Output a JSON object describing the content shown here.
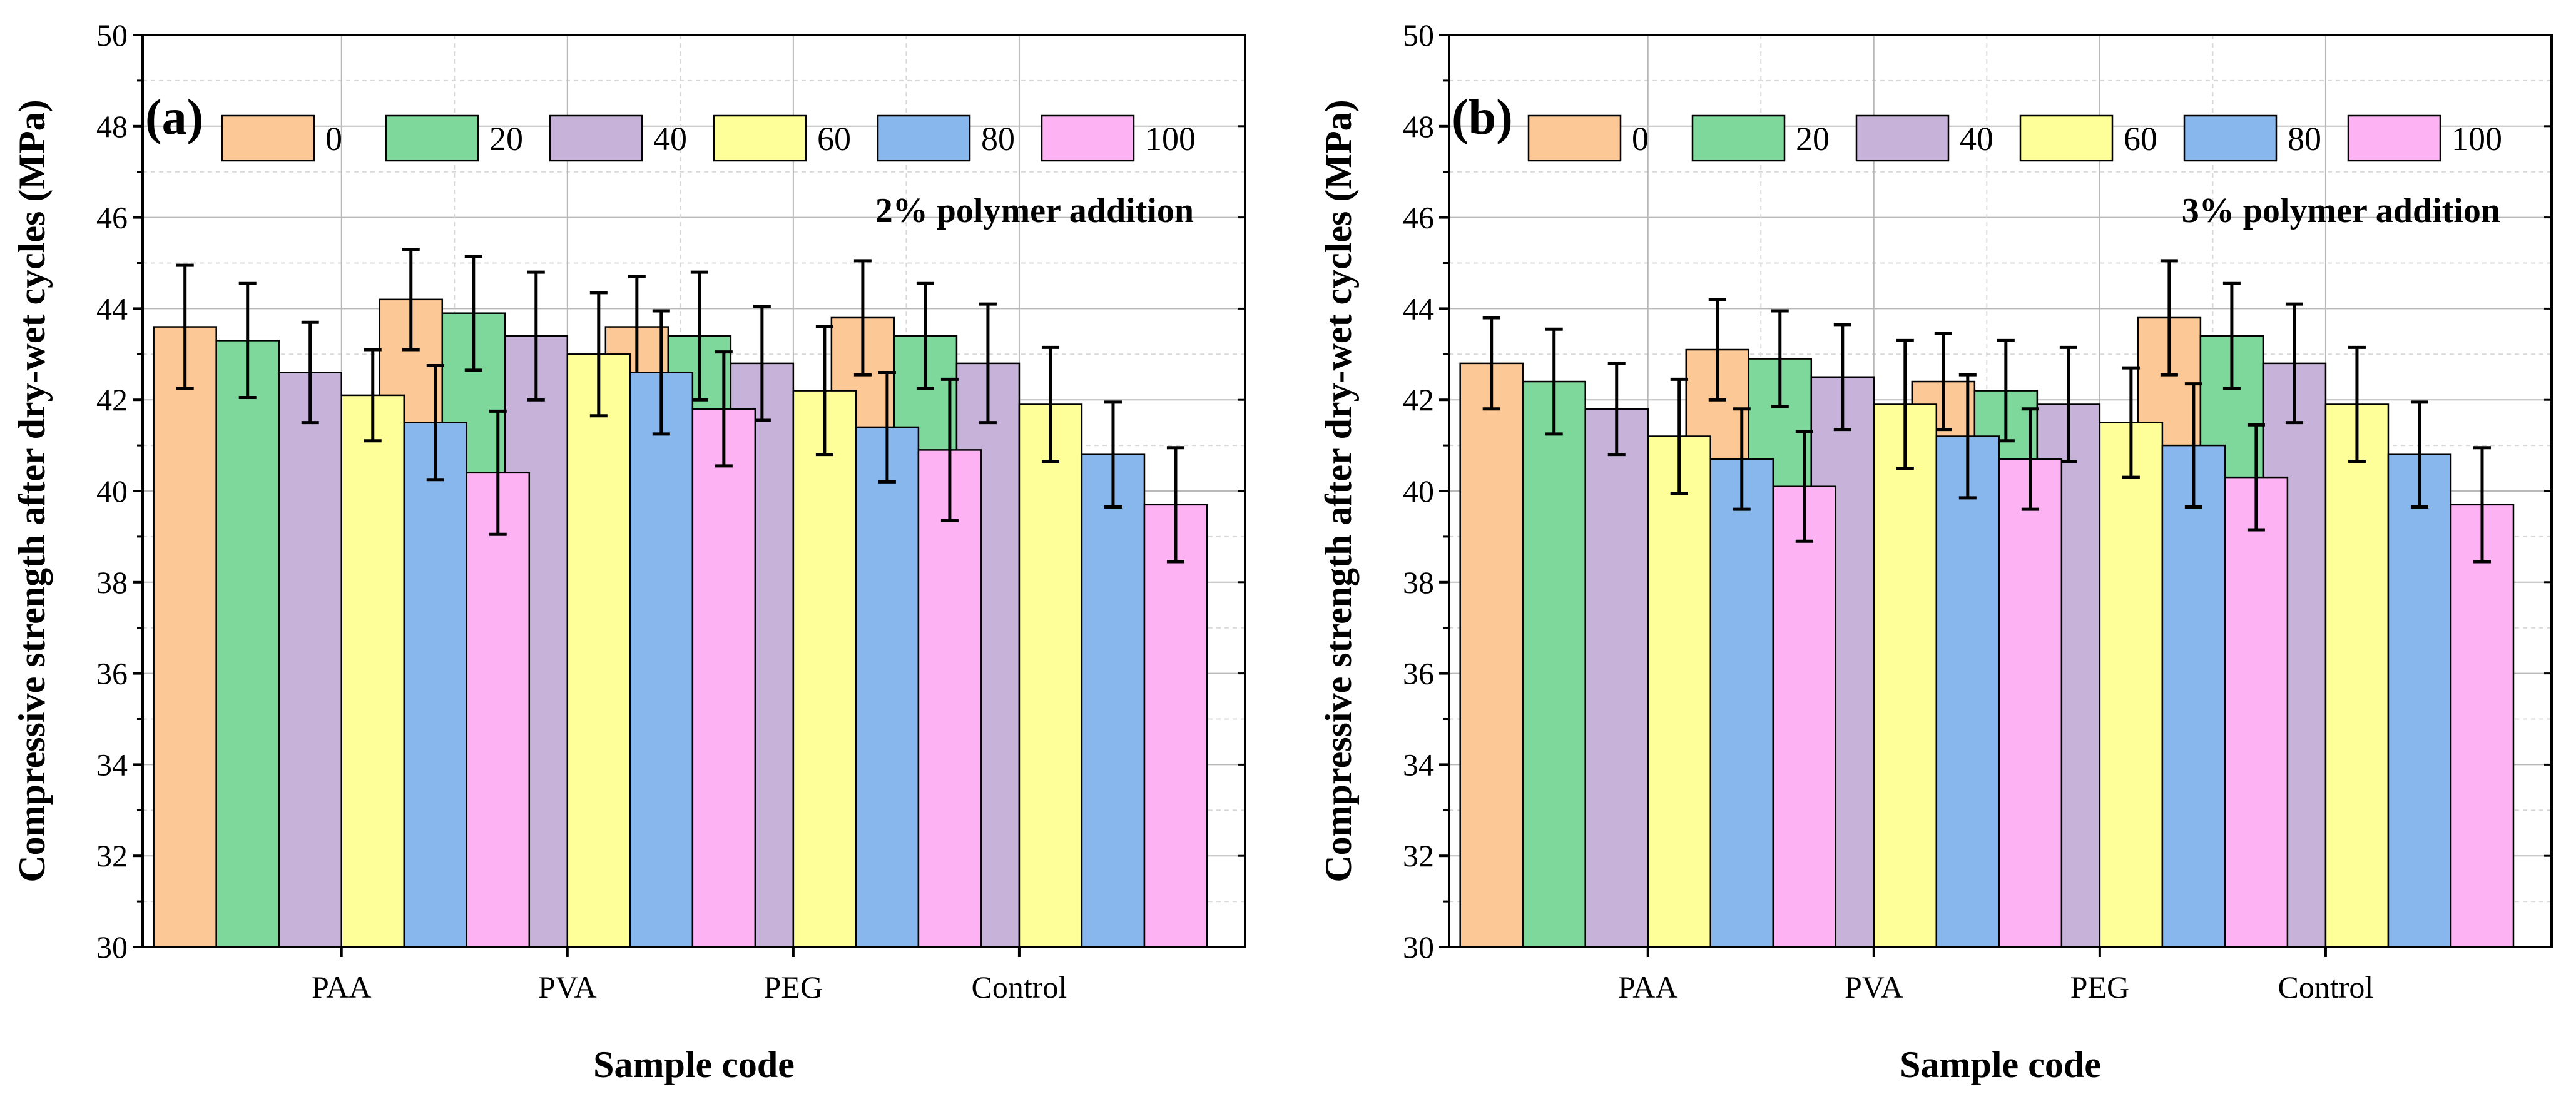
{
  "chart_data": [
    {
      "type": "bar",
      "panel_label": "(a)",
      "annotation": "2% polymer addition",
      "title": "",
      "xlabel": "Sample code",
      "ylabel": "Compressive strength after dry-wet cycles (MPa)",
      "categories": [
        "PAA",
        "PVA",
        "PEG",
        "Control"
      ],
      "ylim": [
        30,
        50
      ],
      "yticks": [
        "30",
        "32",
        "34",
        "36",
        "38",
        "40",
        "42",
        "44",
        "46",
        "48",
        "50"
      ],
      "grid": true,
      "legend_placement": "top",
      "series": [
        {
          "name": "0",
          "color": "#fcc896",
          "values": [
            43.6,
            44.2,
            43.6,
            43.8
          ],
          "errors": [
            1.35,
            1.1,
            1.1,
            1.25
          ]
        },
        {
          "name": "20",
          "color": "#7ed89b",
          "values": [
            43.3,
            43.9,
            43.4,
            43.4
          ],
          "errors": [
            1.25,
            1.25,
            1.4,
            1.15
          ]
        },
        {
          "name": "40",
          "color": "#c7b3d9",
          "values": [
            42.6,
            43.4,
            42.8,
            42.8
          ],
          "errors": [
            1.1,
            1.4,
            1.25,
            1.3
          ]
        },
        {
          "name": "60",
          "color": "#ffff99",
          "values": [
            42.1,
            43.0,
            42.2,
            41.9
          ],
          "errors": [
            1.0,
            1.35,
            1.4,
            1.25
          ]
        },
        {
          "name": "80",
          "color": "#88b7ee",
          "values": [
            41.5,
            42.6,
            41.4,
            40.8
          ],
          "errors": [
            1.25,
            1.35,
            1.2,
            1.15
          ]
        },
        {
          "name": "100",
          "color": "#fdb2f3",
          "values": [
            40.4,
            41.8,
            40.9,
            39.7
          ],
          "errors": [
            1.35,
            1.25,
            1.55,
            1.25
          ]
        }
      ]
    },
    {
      "type": "bar",
      "panel_label": "(b)",
      "annotation": "3% polymer addition",
      "title": "",
      "xlabel": "Sample code",
      "ylabel": "Compressive strength after dry-wet cycles (MPa)",
      "categories": [
        "PAA",
        "PVA",
        "PEG",
        "Control"
      ],
      "ylim": [
        30,
        50
      ],
      "yticks": [
        "30",
        "32",
        "34",
        "36",
        "38",
        "40",
        "42",
        "44",
        "46",
        "48",
        "50"
      ],
      "grid": true,
      "legend_placement": "top",
      "series": [
        {
          "name": "0",
          "color": "#fcc896",
          "values": [
            42.8,
            43.1,
            42.4,
            43.8
          ],
          "errors": [
            1.0,
            1.1,
            1.05,
            1.25
          ]
        },
        {
          "name": "20",
          "color": "#7ed89b",
          "values": [
            42.4,
            42.9,
            42.2,
            43.4
          ],
          "errors": [
            1.15,
            1.05,
            1.1,
            1.15
          ]
        },
        {
          "name": "40",
          "color": "#c7b3d9",
          "values": [
            41.8,
            42.5,
            41.9,
            42.8
          ],
          "errors": [
            1.0,
            1.15,
            1.25,
            1.3
          ]
        },
        {
          "name": "60",
          "color": "#ffff99",
          "values": [
            41.2,
            41.9,
            41.5,
            41.9
          ],
          "errors": [
            1.25,
            1.4,
            1.2,
            1.25
          ]
        },
        {
          "name": "80",
          "color": "#88b7ee",
          "values": [
            40.7,
            41.2,
            41.0,
            40.8
          ],
          "errors": [
            1.1,
            1.35,
            1.35,
            1.15
          ]
        },
        {
          "name": "100",
          "color": "#fdb2f3",
          "values": [
            40.1,
            40.7,
            40.3,
            39.7
          ],
          "errors": [
            1.2,
            1.1,
            1.15,
            1.25
          ]
        }
      ]
    }
  ]
}
